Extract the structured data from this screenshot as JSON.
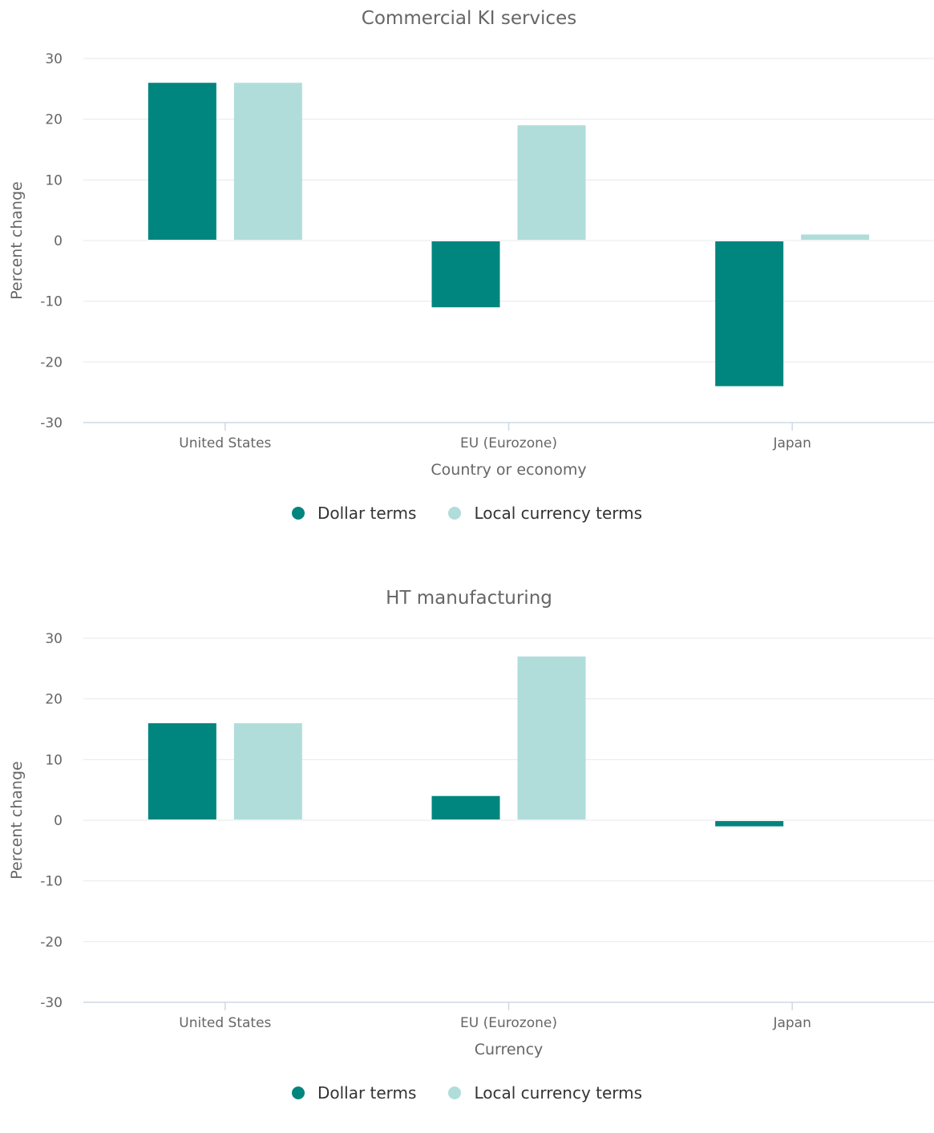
{
  "colors": {
    "dollar": "#00857f",
    "local": "#b0ddda",
    "grid": "#e4e8ec",
    "axis": "#cdd9e5",
    "title": "#666666",
    "tick": "#666666",
    "legend_text": "#333333"
  },
  "chart_data": [
    {
      "type": "bar",
      "title": "Commercial KI services",
      "xlabel": "Country or economy",
      "ylabel": "Percent change",
      "categories": [
        "United States",
        "EU (Eurozone)",
        "Japan"
      ],
      "series": [
        {
          "name": "Dollar terms",
          "values": [
            26,
            -11,
            -24
          ]
        },
        {
          "name": "Local currency terms",
          "values": [
            26,
            19,
            1
          ]
        }
      ],
      "ylim": [
        -30,
        30
      ],
      "yticks": [
        30,
        20,
        10,
        0,
        -10,
        -20,
        -30
      ],
      "grid": true,
      "legend": "bottom-center"
    },
    {
      "type": "bar",
      "title": "HT manufacturing",
      "xlabel": "Currency",
      "ylabel": "Percent change",
      "categories": [
        "United States",
        "EU (Eurozone)",
        "Japan"
      ],
      "series": [
        {
          "name": "Dollar terms",
          "values": [
            16,
            4,
            -1
          ]
        },
        {
          "name": "Local currency terms",
          "values": [
            16,
            27,
            0
          ]
        }
      ],
      "ylim": [
        -30,
        30
      ],
      "yticks": [
        30,
        20,
        10,
        0,
        -10,
        -20,
        -30
      ],
      "grid": true,
      "legend": "bottom-center"
    }
  ]
}
